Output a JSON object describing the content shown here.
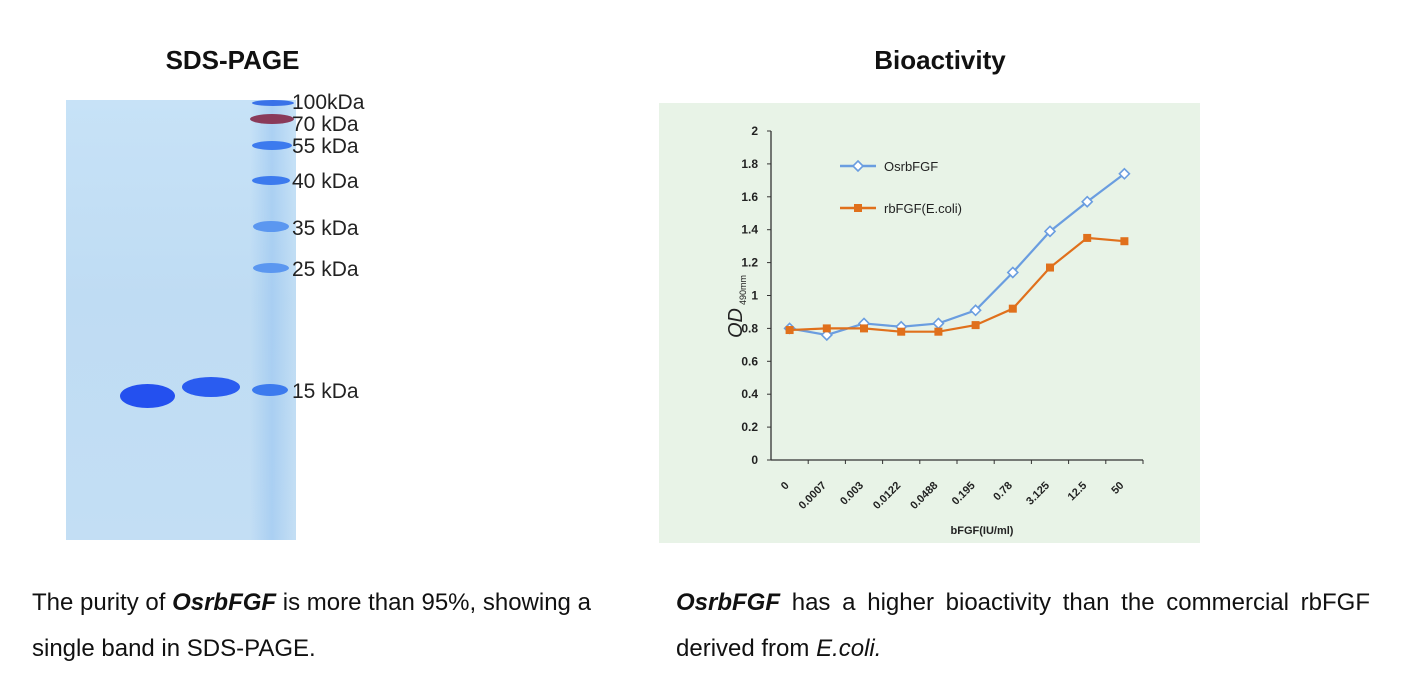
{
  "sds_page": {
    "title": "SDS-PAGE",
    "markers": [
      "100kDa",
      "70 kDa",
      "55 kDa",
      "40 kDa",
      "35 kDa",
      "25 kDa",
      "15 kDa"
    ],
    "colors": {
      "gel": "#c3def4",
      "band": "#2f5ff0",
      "marker_70": "#8a3a5a"
    }
  },
  "bioactivity": {
    "title": "Bioactivity"
  },
  "chart_data": {
    "type": "line",
    "title": "Bioactivity",
    "xlabel": "bFGF(IU/ml)",
    "ylabel": "OD 490mm",
    "ylabel_main": "OD",
    "ylabel_sub": "490mm",
    "categories": [
      "0",
      "0.0007",
      "0.003",
      "0.0122",
      "0.0488",
      "0.195",
      "0.78",
      "3.125",
      "12.5",
      "50"
    ],
    "ylim": [
      0,
      2
    ],
    "yticks": [
      "0",
      "0.2",
      "0.4",
      "0.6",
      "0.8",
      "1",
      "1.2",
      "1.4",
      "1.6",
      "1.8",
      "2"
    ],
    "grid": false,
    "legend_position": "top-left",
    "series": [
      {
        "name": "OsrbFGF",
        "color": "#6a9de0",
        "marker": "diamond",
        "values": [
          0.8,
          0.76,
          0.83,
          0.81,
          0.83,
          0.91,
          1.14,
          1.39,
          1.57,
          1.74
        ]
      },
      {
        "name": "rbFGF(E.coli)",
        "color": "#e0701c",
        "marker": "square",
        "values": [
          0.79,
          0.8,
          0.8,
          0.78,
          0.78,
          0.82,
          0.92,
          1.17,
          1.35,
          1.33
        ]
      }
    ]
  },
  "captions": {
    "left": {
      "pre": "The purity of ",
      "bold": "OsrbFGF",
      "post": " is more than 95%, showing a single band in SDS-PAGE."
    },
    "right": {
      "bold": "OsrbFGF",
      "mid": " has a higher bioactivity than the commercial rbFGF derived from ",
      "italic": "E.coli."
    }
  }
}
